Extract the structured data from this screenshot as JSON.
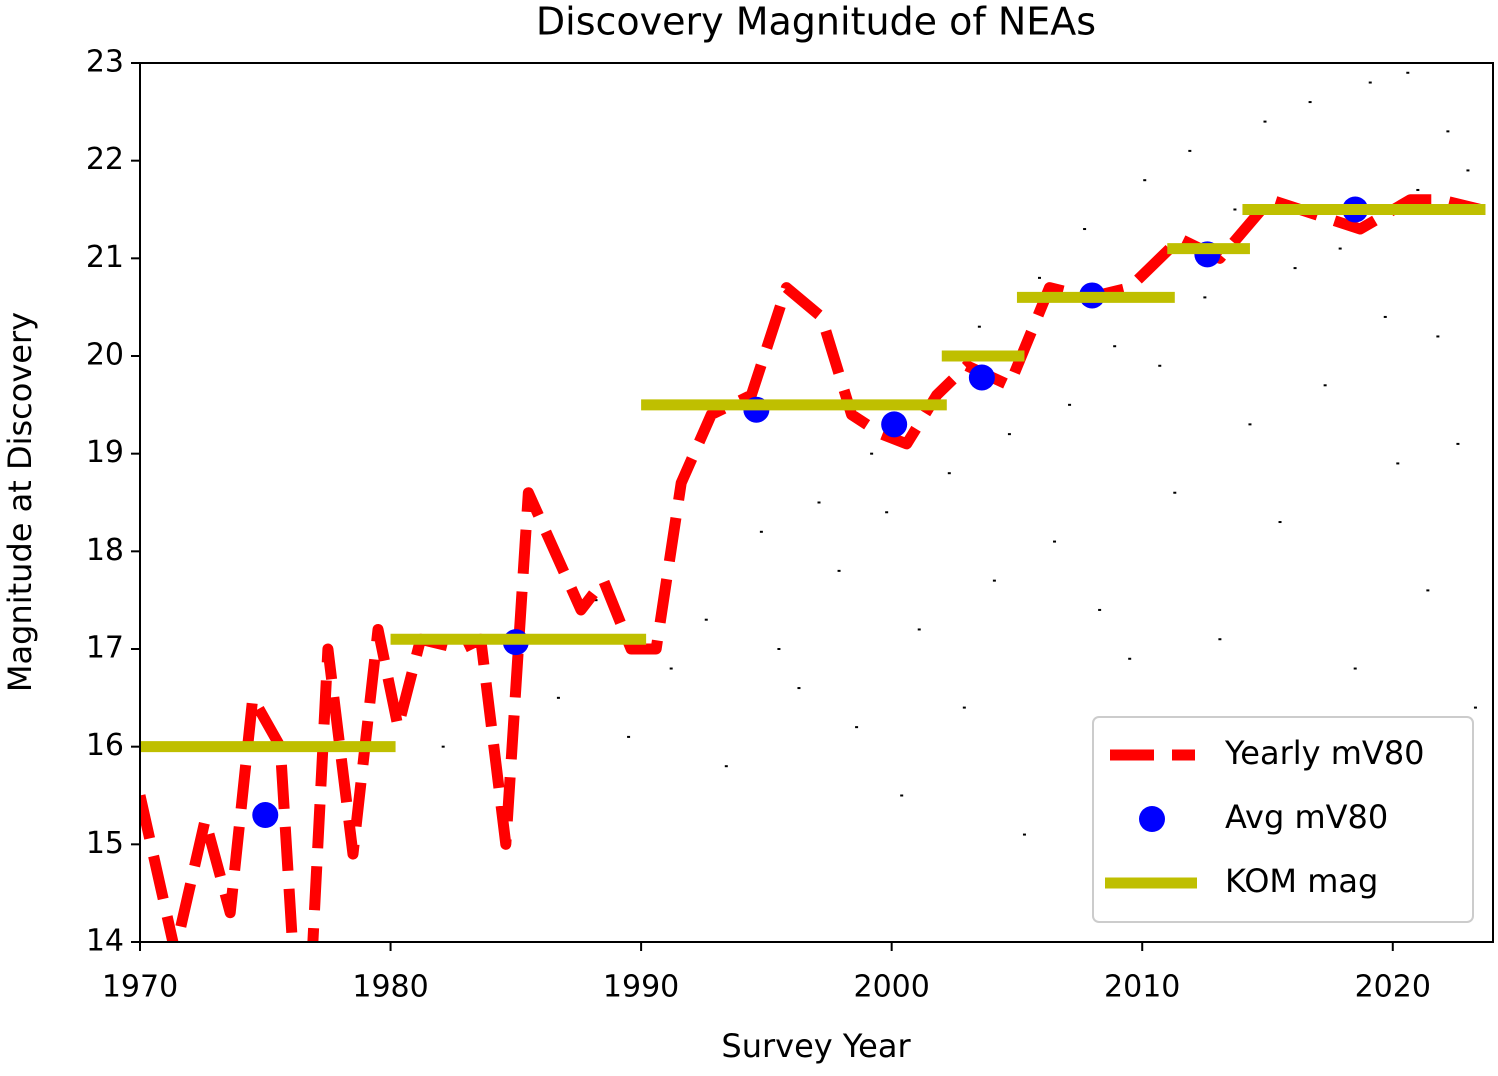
{
  "chart_data": {
    "type": "line",
    "title": "Discovery Magnitude of NEAs",
    "x_label": "Survey Year",
    "y_label": "Magnitude at Discovery",
    "xlim": [
      1970,
      2024
    ],
    "ylim": [
      14,
      23
    ],
    "xticks": [
      1970,
      1980,
      1990,
      2000,
      2010,
      2020
    ],
    "yticks": [
      14,
      15,
      16,
      17,
      18,
      19,
      20,
      21,
      22,
      23
    ],
    "legend": "lower right",
    "series": [
      {
        "style": "scatter",
        "color": "#000000",
        "x": [
          1982.1,
          1984.3,
          1986.7,
          1988.2,
          1989.5,
          1991.2,
          1992.6,
          1993.4,
          1994.8,
          1995.5,
          1996.3,
          1997.1,
          1997.9,
          1998.6,
          1999.2,
          1999.8,
          2000.4,
          2001.1,
          2001.7,
          2002.3,
          2002.9,
          2003.5,
          2004.1,
          2004.7,
          2005.3,
          2005.9,
          2006.5,
          2007.1,
          2007.7,
          2008.3,
          2008.9,
          2009.5,
          2010.1,
          2010.7,
          2011.3,
          2011.9,
          2012.5,
          2013.1,
          2013.7,
          2014.3,
          2014.9,
          2015.5,
          2016.1,
          2016.7,
          2017.3,
          2017.9,
          2018.5,
          2019.1,
          2019.7,
          2020.2,
          2020.6,
          2021.0,
          2021.4,
          2021.8,
          2022.2,
          2022.6,
          2023.0,
          2023.3
        ],
        "values": [
          16.0,
          15.9,
          16.5,
          17.5,
          16.1,
          16.8,
          17.3,
          15.8,
          18.2,
          17.0,
          16.6,
          18.5,
          17.8,
          16.2,
          19.0,
          18.4,
          15.5,
          17.2,
          19.6,
          18.8,
          16.4,
          20.3,
          17.7,
          19.2,
          15.1,
          20.8,
          18.1,
          19.5,
          21.3,
          17.4,
          20.1,
          16.9,
          21.8,
          19.9,
          18.6,
          22.1,
          20.6,
          17.1,
          21.5,
          19.3,
          22.4,
          18.3,
          20.9,
          22.6,
          19.7,
          21.1,
          16.8,
          22.8,
          20.4,
          18.9,
          22.9,
          21.7,
          17.6,
          20.2,
          22.3,
          19.1,
          21.9,
          16.4
        ]
      },
      {
        "style": "dashed",
        "name": "Yearly mV80",
        "color": "#ff0000",
        "x": [
          1970,
          1971.4,
          1972.6,
          1973.6,
          1974.5,
          1975.6,
          1976.2,
          1976.9,
          1977.5,
          1978.5,
          1979.5,
          1980.3,
          1981.2,
          1982.8,
          1983.6,
          1984.6,
          1985.5,
          1987.6,
          1988.5,
          1989.6,
          1990.6,
          1991.6,
          1992.8,
          1994.4,
          1995.8,
          1997.2,
          1998.4,
          1999.6,
          2000.6,
          2001.8,
          2003,
          2004.7,
          2006.3,
          2007.9,
          2009.5,
          2011.5,
          2013.1,
          2015.1,
          2017.5,
          2018.7,
          2020.7,
          2021.9,
          2023.5
        ],
        "values": [
          15.5,
          13.9,
          15.25,
          14.3,
          16.5,
          16.0,
          13.5,
          14.0,
          17.0,
          14.9,
          17.2,
          16.2,
          17.1,
          17.0,
          17.1,
          15.0,
          18.6,
          17.4,
          17.7,
          17.0,
          17.0,
          18.7,
          19.4,
          19.6,
          20.7,
          20.4,
          19.4,
          19.2,
          19.1,
          19.6,
          19.9,
          19.7,
          20.7,
          20.6,
          20.7,
          21.2,
          21.0,
          21.6,
          21.4,
          21.3,
          21.6,
          21.6,
          21.5
        ]
      },
      {
        "style": "marker",
        "name": "Avg mV80",
        "color": "#0000ff",
        "x": [
          1975,
          1985,
          1994.6,
          2000.1,
          2003.6,
          2008,
          2012.6,
          2018.5
        ],
        "values": [
          15.3,
          17.07,
          19.45,
          19.3,
          19.78,
          20.62,
          21.04,
          21.5
        ]
      },
      {
        "style": "hline",
        "name": "KOM mag",
        "color": "#bfbf00",
        "x_start": [
          1970,
          1980,
          1990,
          2002,
          2005,
          2011,
          2014
        ],
        "x_end": [
          1980.2,
          1990.2,
          2002.2,
          2005.3,
          2011.3,
          2014.3,
          2023.7
        ],
        "values": [
          16.0,
          17.1,
          19.5,
          20.0,
          20.6,
          21.1,
          21.5
        ]
      }
    ]
  }
}
